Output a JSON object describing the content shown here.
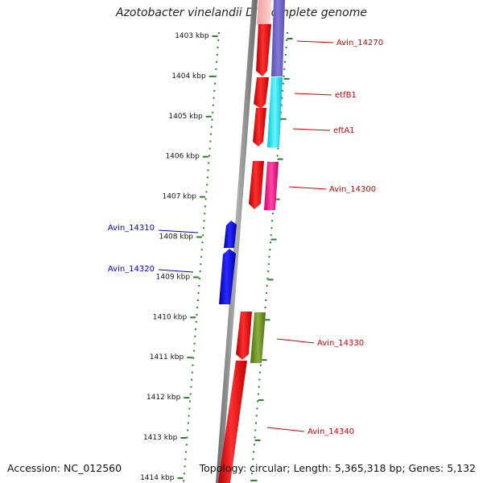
{
  "title": "Azotobacter vinelandii DJ, complete genome",
  "footer": {
    "accession": "Accession: NC_012560",
    "summary": "Topology: circular; Length: 5,365,318 bp; Genes: 5,132"
  },
  "colors": {
    "forward_gene": "#ff0000",
    "reverse_gene": "#0000ff",
    "backbone": "#808080",
    "tick": "#2e7d2e",
    "forward_label": "#cc0000",
    "reverse_label": "#0000cc"
  },
  "ticks": [
    {
      "label": "1403 kbp"
    },
    {
      "label": "1404 kbp"
    },
    {
      "label": "1405 kbp"
    },
    {
      "label": "1406 kbp"
    },
    {
      "label": "1407 kbp"
    },
    {
      "label": "1408 kbp"
    },
    {
      "label": "1409 kbp"
    },
    {
      "label": "1410 kbp"
    },
    {
      "label": "1411 kbp"
    },
    {
      "label": "1412 kbp"
    },
    {
      "label": "1413 kbp"
    },
    {
      "label": "1414 kbp"
    }
  ],
  "gene_labels": [
    {
      "text": "Avin_14270",
      "strand": "forward"
    },
    {
      "text": "etfB1",
      "strand": "forward"
    },
    {
      "text": "eftA1",
      "strand": "forward"
    },
    {
      "text": "Avin_14300",
      "strand": "forward"
    },
    {
      "text": "Avin_14310",
      "strand": "reverse"
    },
    {
      "text": "Avin_14320",
      "strand": "reverse"
    },
    {
      "text": "Avin_14330",
      "strand": "forward"
    },
    {
      "text": "Avin_14340",
      "strand": "forward"
    }
  ]
}
